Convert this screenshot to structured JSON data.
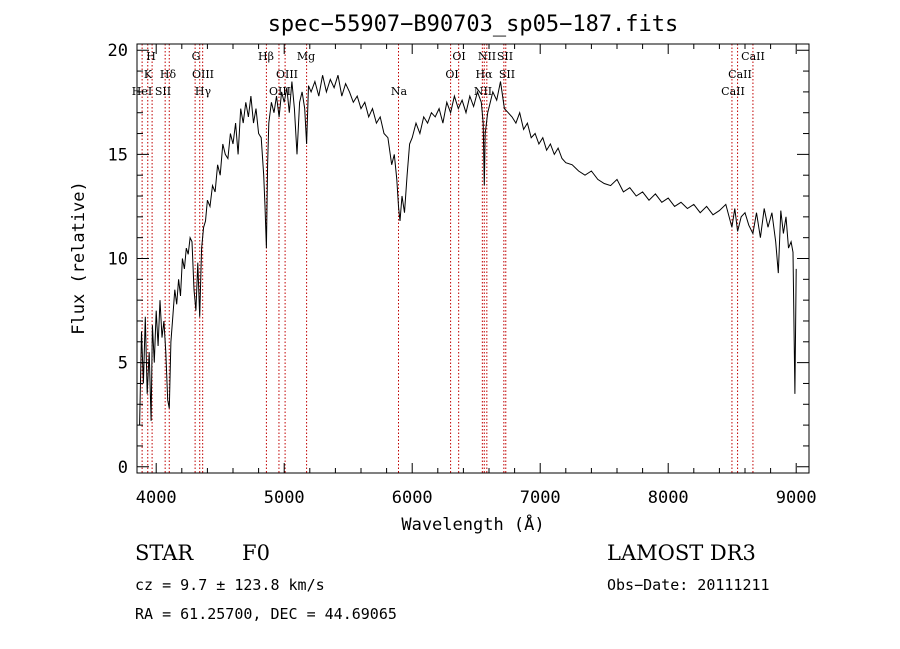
{
  "chart_data": {
    "type": "line",
    "title": "spec−55907−B90703_sp05−187.fits",
    "xlabel": "Wavelength (Å)",
    "ylabel": "Flux (relative)",
    "xlim": [
      3850,
      9100
    ],
    "ylim": [
      -0.3,
      20.3
    ],
    "x_ticks": [
      4000,
      5000,
      6000,
      7000,
      8000,
      9000
    ],
    "y_ticks": [
      0,
      5,
      10,
      15,
      20
    ],
    "grid": false,
    "series": [
      {
        "name": "flux",
        "x": [
          3870,
          3885,
          3900,
          3915,
          3930,
          3945,
          3960,
          3970,
          3985,
          4000,
          4015,
          4030,
          4045,
          4060,
          4075,
          4090,
          4102,
          4115,
          4130,
          4145,
          4160,
          4175,
          4190,
          4205,
          4220,
          4235,
          4250,
          4265,
          4280,
          4295,
          4310,
          4325,
          4340,
          4355,
          4370,
          4385,
          4400,
          4420,
          4440,
          4460,
          4480,
          4500,
          4520,
          4540,
          4560,
          4580,
          4600,
          4620,
          4640,
          4660,
          4680,
          4700,
          4720,
          4740,
          4760,
          4780,
          4800,
          4820,
          4840,
          4850,
          4861,
          4870,
          4880,
          4900,
          4920,
          4940,
          4960,
          4980,
          5000,
          5020,
          5040,
          5060,
          5080,
          5100,
          5120,
          5140,
          5160,
          5175,
          5190,
          5210,
          5240,
          5270,
          5300,
          5330,
          5360,
          5390,
          5420,
          5450,
          5480,
          5510,
          5540,
          5570,
          5600,
          5630,
          5660,
          5690,
          5720,
          5750,
          5780,
          5810,
          5840,
          5860,
          5880,
          5893,
          5905,
          5920,
          5940,
          5960,
          5980,
          6000,
          6030,
          6060,
          6090,
          6120,
          6150,
          6180,
          6210,
          6240,
          6270,
          6300,
          6330,
          6360,
          6390,
          6420,
          6450,
          6480,
          6510,
          6540,
          6555,
          6563,
          6570,
          6590,
          6610,
          6630,
          6660,
          6690,
          6720,
          6750,
          6780,
          6810,
          6840,
          6870,
          6900,
          6930,
          6960,
          6990,
          7020,
          7050,
          7080,
          7110,
          7140,
          7170,
          7200,
          7250,
          7300,
          7350,
          7400,
          7450,
          7500,
          7550,
          7600,
          7650,
          7700,
          7750,
          7800,
          7850,
          7900,
          7950,
          8000,
          8050,
          8100,
          8150,
          8200,
          8250,
          8300,
          8350,
          8400,
          8450,
          8498,
          8520,
          8542,
          8570,
          8600,
          8630,
          8662,
          8690,
          8720,
          8750,
          8780,
          8810,
          8840,
          8860,
          8880,
          8900,
          8920,
          8940,
          8960,
          8975,
          8990,
          9000
        ],
        "y": [
          2.0,
          6.5,
          4.0,
          7.2,
          3.5,
          5.5,
          2.2,
          6.8,
          5.0,
          7.5,
          5.8,
          8.0,
          6.2,
          7.0,
          5.5,
          3.2,
          2.8,
          6.0,
          7.2,
          8.5,
          7.8,
          9.0,
          8.2,
          10.0,
          9.5,
          10.5,
          10.2,
          11.0,
          10.8,
          8.5,
          7.5,
          9.8,
          7.2,
          10.5,
          11.5,
          11.8,
          12.8,
          12.5,
          13.5,
          13.2,
          14.5,
          14.0,
          15.5,
          15.0,
          14.8,
          16.0,
          15.5,
          16.5,
          15.0,
          17.2,
          16.5,
          17.5,
          16.8,
          17.8,
          16.5,
          17.2,
          16.0,
          15.8,
          14.0,
          12.5,
          10.5,
          14.5,
          16.5,
          17.5,
          17.0,
          17.8,
          16.8,
          18.0,
          17.5,
          18.2,
          17.0,
          18.5,
          17.2,
          15.0,
          17.5,
          18.0,
          17.2,
          15.5,
          18.3,
          18.0,
          18.5,
          17.8,
          18.8,
          18.0,
          18.6,
          18.2,
          18.8,
          17.8,
          18.4,
          18.0,
          17.5,
          17.8,
          17.2,
          17.5,
          16.8,
          17.2,
          16.5,
          16.8,
          16.0,
          15.8,
          14.5,
          15.0,
          13.8,
          12.5,
          11.8,
          13.0,
          12.2,
          14.0,
          15.5,
          15.8,
          16.5,
          16.0,
          16.8,
          16.5,
          17.0,
          16.8,
          17.2,
          16.5,
          17.5,
          17.0,
          17.8,
          17.2,
          17.6,
          17.0,
          17.8,
          17.3,
          18.0,
          17.5,
          16.5,
          13.5,
          16.0,
          17.0,
          17.5,
          18.0,
          17.6,
          18.5,
          17.2,
          17.0,
          16.8,
          16.5,
          17.0,
          16.2,
          16.5,
          15.8,
          16.0,
          15.5,
          15.8,
          15.2,
          15.5,
          15.0,
          15.3,
          14.8,
          14.6,
          14.5,
          14.2,
          14.0,
          14.2,
          13.8,
          13.6,
          13.5,
          13.8,
          13.2,
          13.4,
          13.0,
          13.2,
          12.8,
          13.1,
          12.7,
          12.9,
          12.5,
          12.7,
          12.4,
          12.6,
          12.2,
          12.5,
          12.1,
          12.3,
          12.6,
          11.5,
          12.4,
          11.3,
          12.0,
          12.2,
          11.6,
          11.2,
          12.2,
          11.0,
          12.4,
          11.5,
          12.2,
          10.8,
          9.3,
          12.3,
          11.2,
          12.0,
          10.5,
          10.8,
          10.3,
          3.5,
          9.5
        ]
      }
    ],
    "line_color": "#000000",
    "lines": [
      {
        "x": 3890,
        "top": [
          "H",
          "K",
          "HeI"
        ]
      },
      {
        "x": 3934,
        "top": []
      },
      {
        "x": 3968,
        "top": []
      },
      {
        "x": 4070,
        "top": [
          "SII"
        ]
      },
      {
        "x": 4102,
        "top": [
          "Hδ"
        ]
      },
      {
        "x": 4304,
        "top": [
          "G"
        ]
      },
      {
        "x": 4340,
        "top": [
          "Hγ"
        ]
      },
      {
        "x": 4363,
        "top": [
          "OIII"
        ]
      },
      {
        "x": 4861,
        "top": [
          "Hβ"
        ]
      },
      {
        "x": 4959,
        "top": [
          "OIII"
        ]
      },
      {
        "x": 5007,
        "top": [
          "OIII"
        ]
      },
      {
        "x": 5175,
        "top": [
          "Mg"
        ]
      },
      {
        "x": 5893,
        "top": [
          "Na"
        ]
      },
      {
        "x": 6300,
        "top": [
          "OI"
        ]
      },
      {
        "x": 6363,
        "top": [
          "OI"
        ]
      },
      {
        "x": 6548,
        "top": [
          "NII"
        ]
      },
      {
        "x": 6563,
        "top": [
          "Hα"
        ]
      },
      {
        "x": 6583,
        "top": [
          "NII"
        ]
      },
      {
        "x": 6716,
        "top": [
          "SII"
        ]
      },
      {
        "x": 6731,
        "top": [
          "SII"
        ]
      },
      {
        "x": 8498,
        "top": [
          "CaII"
        ]
      },
      {
        "x": 8542,
        "top": [
          "CaII"
        ]
      },
      {
        "x": 8662,
        "top": [
          "CaII"
        ]
      }
    ],
    "line_color_marks": "#c00000",
    "annotations": [
      "H",
      "K",
      "HeI",
      "SII",
      "Hδ",
      "G",
      "OIII",
      "Hγ",
      "Hβ",
      "OIII",
      "OIII",
      "Mg",
      "Na",
      "OI",
      "OI",
      "NII",
      "Hα",
      "NII",
      "SII",
      "SII",
      "CaII",
      "CaII",
      "CaII"
    ]
  },
  "info": {
    "class": "STAR",
    "subclass": "F0",
    "survey": "LAMOST DR3",
    "cz": "cz = 9.7 ± 123.8 km/s",
    "obs_date": "Obs−Date: 20111211",
    "coords": "RA =  61.25700, DEC =  44.69065"
  }
}
